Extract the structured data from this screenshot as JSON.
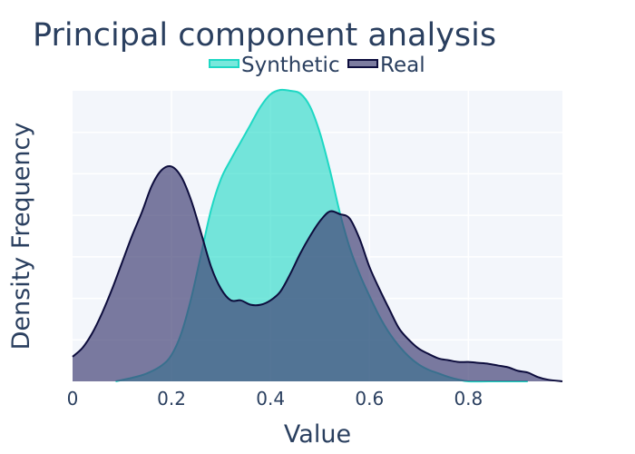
{
  "chart_data": {
    "type": "area",
    "title": "Principal component analysis",
    "xlabel": "Value",
    "ylabel": "Density Frequency",
    "xlim": [
      0,
      0.99
    ],
    "ylim": [
      0,
      3.3
    ],
    "x_ticks": [
      0,
      0.2,
      0.4,
      0.6,
      0.8
    ],
    "x_tick_labels": [
      "0",
      "0.2",
      "0.4",
      "0.6",
      "0.8"
    ],
    "y_tick_labels_visible": false,
    "grid": true,
    "legend_position": "top",
    "series": [
      {
        "name": "Synthetic",
        "color": "#1ed8c4",
        "fill": "rgba(30,216,196,0.6)",
        "x": [
          0.087,
          0.12,
          0.15,
          0.18,
          0.2,
          0.22,
          0.24,
          0.26,
          0.28,
          0.3,
          0.32,
          0.34,
          0.36,
          0.38,
          0.4,
          0.42,
          0.44,
          0.46,
          0.48,
          0.5,
          0.52,
          0.54,
          0.56,
          0.58,
          0.6,
          0.62,
          0.64,
          0.66,
          0.68,
          0.7,
          0.72,
          0.74,
          0.76,
          0.78,
          0.8,
          0.84,
          0.88,
          0.92
        ],
        "y": [
          0.0,
          0.04,
          0.09,
          0.18,
          0.3,
          0.55,
          0.95,
          1.45,
          1.95,
          2.3,
          2.52,
          2.72,
          2.92,
          3.12,
          3.26,
          3.31,
          3.3,
          3.27,
          3.12,
          2.82,
          2.4,
          1.92,
          1.52,
          1.22,
          0.97,
          0.74,
          0.55,
          0.4,
          0.28,
          0.19,
          0.13,
          0.09,
          0.05,
          0.02,
          0.0,
          0.0,
          0.0,
          0.0
        ]
      },
      {
        "name": "Real",
        "color": "#0d0d3d",
        "fill": "rgba(68,68,120,0.7)",
        "x": [
          0.0,
          0.02,
          0.04,
          0.06,
          0.08,
          0.1,
          0.12,
          0.14,
          0.16,
          0.18,
          0.2,
          0.22,
          0.24,
          0.26,
          0.28,
          0.3,
          0.32,
          0.34,
          0.36,
          0.38,
          0.4,
          0.42,
          0.44,
          0.46,
          0.48,
          0.5,
          0.52,
          0.54,
          0.56,
          0.58,
          0.6,
          0.62,
          0.64,
          0.66,
          0.68,
          0.7,
          0.72,
          0.74,
          0.76,
          0.78,
          0.8,
          0.82,
          0.84,
          0.86,
          0.88,
          0.9,
          0.92,
          0.94,
          0.96,
          0.99
        ],
        "y": [
          0.28,
          0.38,
          0.55,
          0.78,
          1.05,
          1.35,
          1.65,
          1.92,
          2.22,
          2.4,
          2.44,
          2.32,
          2.05,
          1.68,
          1.3,
          1.05,
          0.92,
          0.92,
          0.87,
          0.87,
          0.92,
          1.02,
          1.22,
          1.45,
          1.65,
          1.82,
          1.93,
          1.9,
          1.85,
          1.62,
          1.3,
          1.05,
          0.82,
          0.6,
          0.47,
          0.37,
          0.31,
          0.26,
          0.24,
          0.22,
          0.22,
          0.21,
          0.2,
          0.18,
          0.16,
          0.12,
          0.1,
          0.05,
          0.02,
          0.0
        ]
      }
    ]
  }
}
